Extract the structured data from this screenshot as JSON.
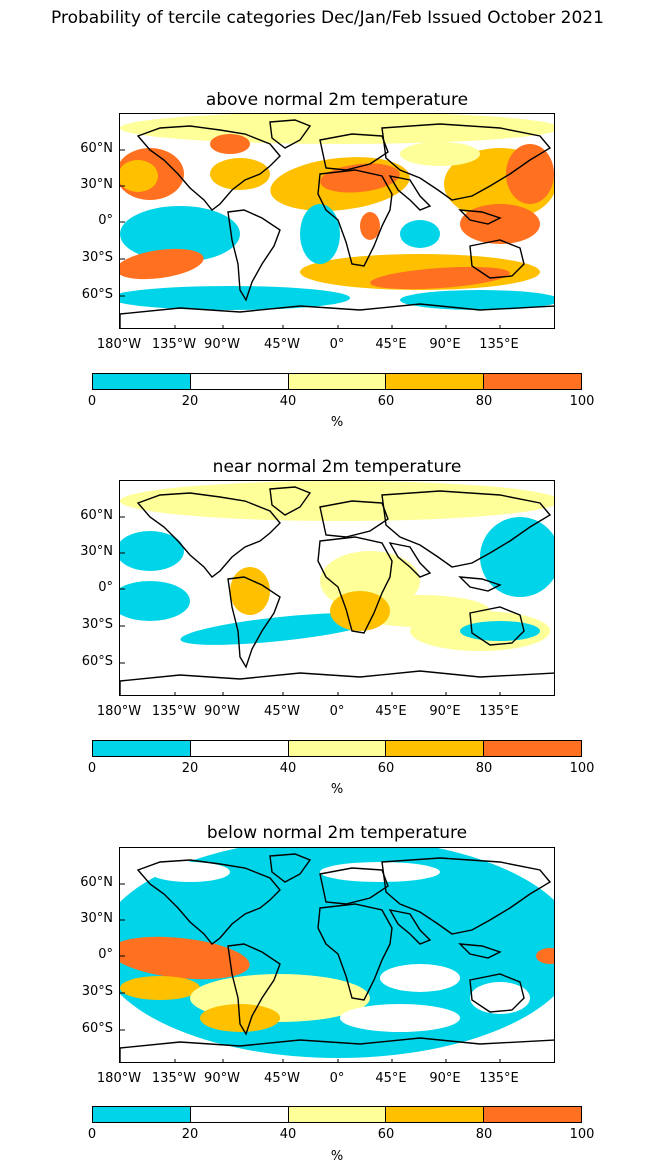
{
  "figure_title": "Probability of tercile categories Dec/Jan/Feb Issued October 2021",
  "panels": [
    {
      "title": "above normal 2m temperature"
    },
    {
      "title": "near normal 2m temperature"
    },
    {
      "title": "below normal 2m temperature"
    }
  ],
  "lat_ticks": [
    "60°N",
    "30°N",
    "0°",
    "30°S",
    "60°S"
  ],
  "lon_ticks": [
    "180°W",
    "135°W",
    "90°W",
    "45°W",
    "0°",
    "45°E",
    "90°E",
    "135°E"
  ],
  "colorbar": {
    "bins": [
      {
        "from": 0,
        "to": 20,
        "color": "#00d4e8"
      },
      {
        "from": 20,
        "to": 40,
        "color": "#ffffff"
      },
      {
        "from": 40,
        "to": 60,
        "color": "#ffff99"
      },
      {
        "from": 60,
        "to": 80,
        "color": "#ffc000"
      },
      {
        "from": 80,
        "to": 100,
        "color": "#ff7020"
      }
    ],
    "tick_labels": [
      "0",
      "20",
      "40",
      "60",
      "80",
      "100"
    ],
    "label": "%"
  }
}
